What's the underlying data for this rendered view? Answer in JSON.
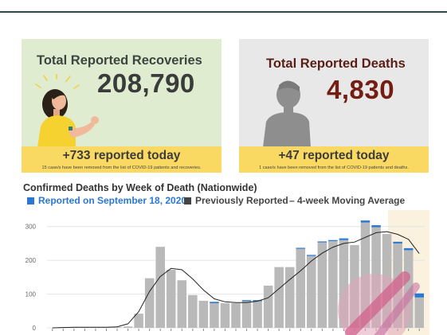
{
  "recoveries": {
    "title": "Total Reported Recoveries",
    "value": "208,790",
    "today": "+733 reported today",
    "note": "15 case/s have been removed from the list of COVID-19 patients and recoveries.",
    "icon": "smiling-woman-icon"
  },
  "deaths": {
    "title": "Total Reported Deaths",
    "value": "4,830",
    "today": "+47 reported today",
    "note": "1 case/s have been removed from the list of COVID-19 patients and deaths.",
    "icon": "person-silhouette-icon"
  },
  "chart": {
    "title": "Confirmed Deaths by Week of Death (Nationwide)",
    "legend_new": "Reported on September 18, 2020",
    "legend_prev": "Previously Reported",
    "legend_avg": "– 4-week Moving Average"
  },
  "colors": {
    "recovery_bg": "#dfeccf",
    "death_bg": "#e8e8e8",
    "band": "#f9d962",
    "bar_previous": "#b9b9b9",
    "bar_new": "#2a78d4",
    "death_value": "#741d12"
  },
  "chart_data": {
    "type": "bar",
    "title": "Confirmed Deaths by Week of Death (Nationwide)",
    "ylim": [
      0,
      330
    ],
    "yticks": [
      0,
      100,
      200,
      300
    ],
    "grid": true,
    "series": [
      {
        "name": "Previously Reported",
        "values": [
          0,
          2,
          2,
          2,
          2,
          2,
          2,
          4,
          42,
          147,
          240,
          172,
          141,
          97,
          80,
          73,
          73,
          73,
          79,
          79,
          125,
          180,
          180,
          234,
          213,
          253,
          257,
          260,
          245,
          312,
          298,
          278,
          250,
          230,
          90
        ]
      },
      {
        "name": "Reported on September 18, 2020",
        "values": [
          0,
          0,
          0,
          0,
          0,
          0,
          0,
          0,
          0,
          0,
          0,
          0,
          0,
          0,
          0,
          4,
          0,
          0,
          3,
          3,
          0,
          0,
          0,
          3,
          3,
          3,
          3,
          5,
          0,
          6,
          6,
          0,
          5,
          6,
          12
        ]
      },
      {
        "name": "4-week Moving Average",
        "values": [
          0,
          1,
          2,
          2,
          2,
          2,
          3,
          12,
          48,
          108,
          152,
          176,
          172,
          145,
          112,
          86,
          77,
          75,
          75,
          79,
          89,
          116,
          143,
          169,
          198,
          221,
          239,
          250,
          254,
          268,
          282,
          285,
          277,
          262,
          220
        ]
      }
    ]
  }
}
